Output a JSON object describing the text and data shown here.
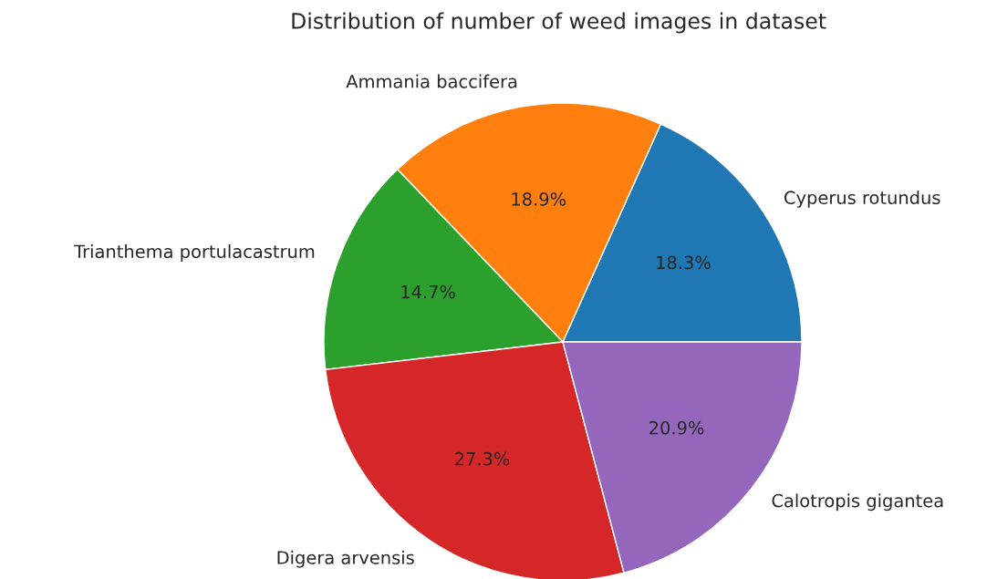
{
  "chart_data": {
    "type": "pie",
    "title": "Distribution of number of weed images in dataset",
    "categories": [
      "Cyperus rotundus",
      "Ammania baccifera",
      "Trianthema portulacastrum",
      "Digera arvensis",
      "Calotropis gigantea"
    ],
    "values": [
      18.3,
      18.9,
      14.7,
      27.3,
      20.9
    ],
    "value_labels": [
      "18.3%",
      "18.9%",
      "14.7%",
      "27.3%",
      "20.9%"
    ],
    "colors": [
      "#1f77b4",
      "#ff7f0e",
      "#2ca02c",
      "#d62728",
      "#9467bd"
    ]
  }
}
